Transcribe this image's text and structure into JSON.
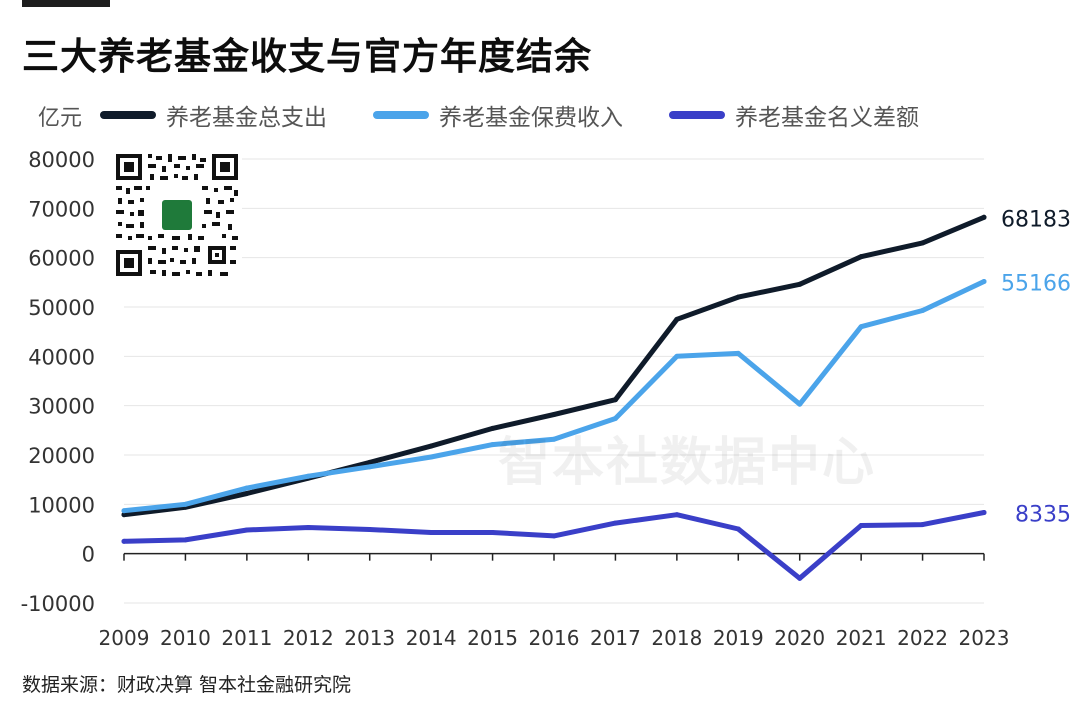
{
  "header": {
    "title": "三大养老基金收支与官方年度结余",
    "unit": "亿元"
  },
  "footer": {
    "source": "数据来源：财政决算 智本社金融研究院"
  },
  "watermark": "智本社数据中心",
  "qr_label": "智本社",
  "chart_data": {
    "type": "line",
    "title": "三大养老基金收支与官方年度结余",
    "ylabel": "亿元",
    "xlabel": "",
    "x": [
      "2009",
      "2010",
      "2011",
      "2012",
      "2013",
      "2014",
      "2015",
      "2016",
      "2017",
      "2018",
      "2019",
      "2020",
      "2021",
      "2022",
      "2023"
    ],
    "ylim": [
      -10000,
      80000
    ],
    "yticks": [
      -10000,
      0,
      10000,
      20000,
      30000,
      40000,
      50000,
      60000,
      70000,
      80000
    ],
    "grid": true,
    "legend": "top",
    "series": [
      {
        "name": "养老基金总支出",
        "color": "#0f1b2a",
        "values": [
          7900,
          9400,
          12200,
          15300,
          18500,
          21800,
          25400,
          28200,
          31200,
          47500,
          52000,
          54600,
          60200,
          63000,
          68183
        ],
        "end_label": "68183"
      },
      {
        "name": "养老基金保费收入",
        "color": "#4ba4ea",
        "values": [
          8700,
          10000,
          13300,
          15700,
          17600,
          19600,
          22100,
          23200,
          27400,
          40000,
          40600,
          30300,
          46000,
          49300,
          55166
        ],
        "end_label": "55166"
      },
      {
        "name": "养老基金名义差额",
        "color": "#3a3fc8",
        "values": [
          2500,
          2800,
          4800,
          5300,
          4900,
          4300,
          4300,
          3600,
          6200,
          7900,
          5000,
          -5000,
          5700,
          5900,
          8335
        ],
        "end_label": "8335"
      }
    ]
  }
}
